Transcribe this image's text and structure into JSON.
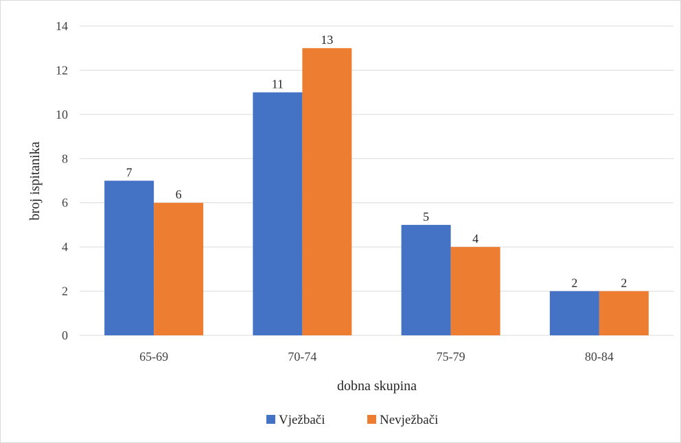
{
  "chart_data": {
    "type": "bar",
    "categories": [
      "65-69",
      "70-74",
      "75-79",
      "80-84"
    ],
    "series": [
      {
        "name": "Vježbači",
        "values": [
          7,
          11,
          5,
          2
        ],
        "color": "#4472C4"
      },
      {
        "name": "Nevježbači",
        "values": [
          6,
          13,
          4,
          2
        ],
        "color": "#ED7D31"
      }
    ],
    "title": "",
    "xlabel": "dobna skupina",
    "ylabel": "broj ispitanika",
    "ylim": [
      0,
      14
    ],
    "yticks": [
      0,
      2,
      4,
      6,
      8,
      10,
      12,
      14
    ],
    "grid": true,
    "legend_position": "bottom",
    "data_labels": true,
    "gridline_color": "#d9d9d9"
  }
}
